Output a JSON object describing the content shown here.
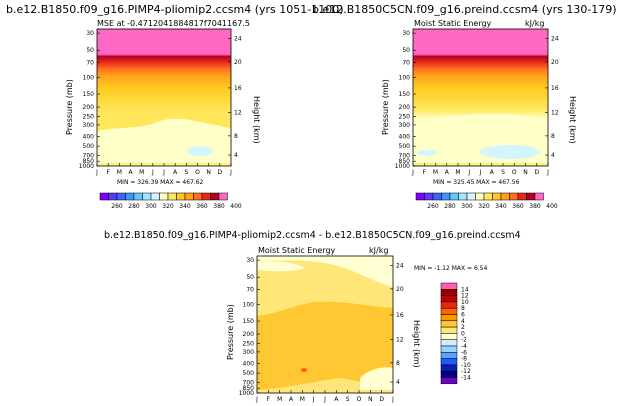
{
  "titles": {
    "left": "b.e12.B1850.f09_g16.PIMP4-pliomip2.ccsm4 (yrs 1051-1100)",
    "right": "b.e12.B1850C5CN.f09_g16.preind.ccsm4 (yrs 130-179)",
    "bottom": "b.e12.B1850.f09_g16.PIMP4-pliomip2.ccsm4 - b.e12.B1850C5CN.f09_g16.preind.ccsm4"
  },
  "chart_data": [
    {
      "type": "heatmap",
      "panel": "left",
      "subtitle": "MSE at -0.4712041884817f7041167.5",
      "ylabel": "Pressure (mb)",
      "ylabel_right": "Height (km)",
      "months": [
        "J",
        "F",
        "M",
        "A",
        "M",
        "J",
        "J",
        "A",
        "S",
        "O",
        "N",
        "D",
        "J"
      ],
      "pressure_ticks": [
        "30",
        "50",
        "70",
        "100",
        "150",
        "200",
        "250",
        "300",
        "400",
        "500",
        "700",
        "850",
        "1000"
      ],
      "height_ticks": [
        "24",
        "20",
        "16",
        "12",
        "8",
        "4"
      ],
      "stats": "MIN = 326.39 MAX = 467.62",
      "colorbar_labels": [
        "260",
        "280",
        "300",
        "320",
        "340",
        "360",
        "380",
        "400"
      ]
    },
    {
      "type": "heatmap",
      "panel": "right",
      "subtitle": "Moist Static Energy",
      "units": "kJ/kg",
      "ylabel": "Pressure (mb)",
      "ylabel_right": "Height (km)",
      "months": [
        "J",
        "F",
        "M",
        "A",
        "M",
        "J",
        "J",
        "A",
        "S",
        "O",
        "N",
        "D",
        "J"
      ],
      "pressure_ticks": [
        "30",
        "50",
        "70",
        "100",
        "150",
        "200",
        "250",
        "300",
        "400",
        "500",
        "700",
        "850",
        "1000"
      ],
      "height_ticks": [
        "24",
        "20",
        "16",
        "12",
        "8",
        "4"
      ],
      "stats": "MIN = 325.45 MAX = 467.56",
      "colorbar_labels": [
        "260",
        "280",
        "300",
        "320",
        "340",
        "360",
        "380",
        "400"
      ]
    },
    {
      "type": "heatmap",
      "panel": "difference",
      "subtitle": "Moist Static Energy",
      "units": "kJ/kg",
      "ylabel": "Pressure (mb)",
      "ylabel_right": "Height (km)",
      "months": [
        "J",
        "F",
        "M",
        "A",
        "M",
        "J",
        "J",
        "A",
        "S",
        "O",
        "N",
        "D",
        "J"
      ],
      "pressure_ticks": [
        "30",
        "50",
        "70",
        "100",
        "150",
        "200",
        "250",
        "300",
        "400",
        "500",
        "700",
        "850",
        "1000"
      ],
      "height_ticks": [
        "24",
        "20",
        "16",
        "12",
        "8",
        "4"
      ],
      "stats": "MIN = -1.12 MAX = 6.54",
      "colorbar_labels": [
        "14",
        "12",
        "10",
        "8",
        "6",
        "4",
        "2",
        "0",
        "-2",
        "-4",
        "-6",
        "-8",
        "-10",
        "-12",
        "-14"
      ]
    }
  ],
  "palettes": {
    "abs": [
      "#7f00ff",
      "#5a3cf0",
      "#3c64ff",
      "#3c96ff",
      "#64c8ff",
      "#a0e6ff",
      "#d2f5ff",
      "#ffffc8",
      "#ffe65a",
      "#ffc81e",
      "#ffa01e",
      "#ff6e1e",
      "#e6281e",
      "#b4001e",
      "#ff69c3"
    ],
    "diff": [
      "#ff5fb0",
      "#9b0000",
      "#c80000",
      "#e62814",
      "#ff6400",
      "#ff9600",
      "#ffc832",
      "#ffe678",
      "#ffffd2",
      "#c8f0ff",
      "#96d2ff",
      "#5aa0ff",
      "#1e5aff",
      "#0a1eb4",
      "#000082",
      "#6e00c8"
    ]
  }
}
